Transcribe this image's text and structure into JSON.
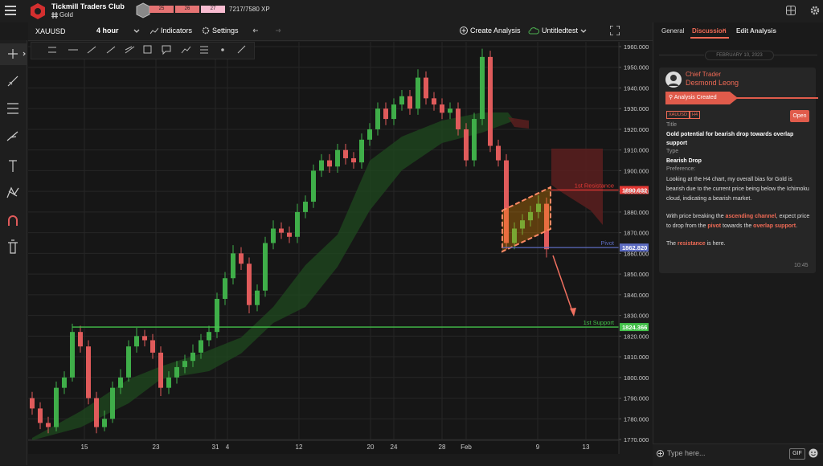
{
  "header": {
    "title": "Tickmill Traders Club",
    "channel": "Gold",
    "levels": [
      "25",
      "26",
      "27"
    ],
    "xp": "7217/7580 XP"
  },
  "toolbar": {
    "symbol": "XAUUSD",
    "timeframe": "4 hour",
    "indicators": "Indicators",
    "settings": "Settings",
    "create": "Create Analysis",
    "layout": "Untitledtest"
  },
  "chart": {
    "type": "candlestick",
    "ylim": [
      1770,
      1960
    ],
    "yticks": [
      {
        "value": 1770,
        "label": "1770.000"
      },
      {
        "value": 1780,
        "label": "1780.000"
      },
      {
        "value": 1790,
        "label": "1790.000"
      },
      {
        "value": 1800,
        "label": "1800.000"
      },
      {
        "value": 1810,
        "label": "1810.000"
      },
      {
        "value": 1820,
        "label": "1820.000"
      },
      {
        "value": 1830,
        "label": "1830.000"
      },
      {
        "value": 1840,
        "label": "1840.000"
      },
      {
        "value": 1850,
        "label": "1850.000"
      },
      {
        "value": 1860,
        "label": "1860.000"
      },
      {
        "value": 1870,
        "label": "1870.000"
      },
      {
        "value": 1880,
        "label": "1880.000"
      },
      {
        "value": 1890,
        "label": "1890.000"
      },
      {
        "value": 1900,
        "label": "1900.000"
      },
      {
        "value": 1910,
        "label": "1910.000"
      },
      {
        "value": 1920,
        "label": "1920.000"
      },
      {
        "value": 1930,
        "label": "1930.000"
      },
      {
        "value": 1940,
        "label": "1940.000"
      },
      {
        "value": 1950,
        "label": "1950.000"
      },
      {
        "value": 1960,
        "label": "1960.000"
      }
    ],
    "xticks": [
      "15",
      "23",
      "31",
      "4",
      "12",
      "20",
      "24",
      "28",
      "Feb",
      "9",
      "13"
    ],
    "up_color": "#3fae49",
    "down_color": "#e05b5b",
    "candles": [
      [
        1790,
        1793,
        1782,
        1785
      ],
      [
        1785,
        1788,
        1775,
        1778
      ],
      [
        1778,
        1781,
        1773,
        1776
      ],
      [
        1776,
        1798,
        1774,
        1795
      ],
      [
        1795,
        1803,
        1792,
        1800
      ],
      [
        1800,
        1826,
        1798,
        1822
      ],
      [
        1822,
        1825,
        1812,
        1815
      ],
      [
        1815,
        1818,
        1787,
        1790
      ],
      [
        1790,
        1793,
        1773,
        1776
      ],
      [
        1776,
        1784,
        1774,
        1780
      ],
      [
        1780,
        1798,
        1778,
        1795
      ],
      [
        1795,
        1804,
        1792,
        1800
      ],
      [
        1800,
        1818,
        1798,
        1815
      ],
      [
        1815,
        1824,
        1812,
        1820
      ],
      [
        1820,
        1823,
        1815,
        1818
      ],
      [
        1818,
        1821,
        1809,
        1812
      ],
      [
        1812,
        1815,
        1791,
        1795
      ],
      [
        1795,
        1803,
        1792,
        1800
      ],
      [
        1800,
        1808,
        1797,
        1805
      ],
      [
        1805,
        1811,
        1802,
        1808
      ],
      [
        1808,
        1816,
        1805,
        1812
      ],
      [
        1812,
        1821,
        1809,
        1818
      ],
      [
        1818,
        1825,
        1815,
        1822
      ],
      [
        1822,
        1841,
        1819,
        1838
      ],
      [
        1838,
        1851,
        1835,
        1848
      ],
      [
        1848,
        1864,
        1845,
        1860
      ],
      [
        1860,
        1863,
        1852,
        1855
      ],
      [
        1855,
        1858,
        1831,
        1835
      ],
      [
        1835,
        1845,
        1832,
        1842
      ],
      [
        1842,
        1868,
        1839,
        1865
      ],
      [
        1865,
        1876,
        1862,
        1872
      ],
      [
        1872,
        1875,
        1867,
        1870
      ],
      [
        1870,
        1873,
        1865,
        1868
      ],
      [
        1868,
        1884,
        1865,
        1880
      ],
      [
        1880,
        1888,
        1877,
        1885
      ],
      [
        1885,
        1903,
        1882,
        1900
      ],
      [
        1900,
        1908,
        1897,
        1905
      ],
      [
        1905,
        1908,
        1899,
        1902
      ],
      [
        1902,
        1913,
        1899,
        1910
      ],
      [
        1910,
        1913,
        1903,
        1906
      ],
      [
        1906,
        1909,
        1901,
        1904
      ],
      [
        1904,
        1918,
        1901,
        1915
      ],
      [
        1915,
        1923,
        1912,
        1920
      ],
      [
        1920,
        1933,
        1917,
        1930
      ],
      [
        1930,
        1933,
        1922,
        1925
      ],
      [
        1925,
        1935,
        1922,
        1932
      ],
      [
        1932,
        1939,
        1929,
        1936
      ],
      [
        1936,
        1939,
        1927,
        1930
      ],
      [
        1930,
        1949,
        1927,
        1945
      ],
      [
        1945,
        1948,
        1932,
        1935
      ],
      [
        1935,
        1938,
        1929,
        1932
      ],
      [
        1932,
        1935,
        1925,
        1928
      ],
      [
        1928,
        1933,
        1925,
        1930
      ],
      [
        1930,
        1933,
        1917,
        1920
      ],
      [
        1920,
        1923,
        1902,
        1905
      ],
      [
        1905,
        1928,
        1902,
        1925
      ],
      [
        1925,
        1959,
        1922,
        1955
      ],
      [
        1955,
        1958,
        1909,
        1912
      ],
      [
        1912,
        1915,
        1902,
        1905
      ],
      [
        1905,
        1908,
        1862,
        1865
      ],
      [
        1865,
        1875,
        1862,
        1872
      ],
      [
        1872,
        1879,
        1869,
        1876
      ],
      [
        1876,
        1883,
        1873,
        1880
      ],
      [
        1880,
        1888,
        1877,
        1884
      ],
      [
        1884,
        1887,
        1858,
        1862
      ]
    ],
    "levels": [
      {
        "name": "1st Resistance",
        "price": {
          "value": 1890.632,
          "label": "1890.632"
        },
        "color": "#e53935"
      },
      {
        "name": "Pivot",
        "price": {
          "value": 1862.82,
          "label": "1862.820"
        },
        "color": "#5c6bc0"
      },
      {
        "name": "1st Support",
        "price": {
          "value": 1824.366,
          "label": "1824.366"
        },
        "color": "#43c04a"
      }
    ]
  },
  "panel": {
    "tabs": [
      "General",
      "Discussion",
      "Edit Analysis"
    ],
    "date": "FEBRUARY 10, 2023",
    "role": "Chief Trader",
    "author": "Desmond Leong",
    "event": "Analysis Created",
    "tags": [
      "XAUUSD",
      "H4"
    ],
    "open": "Open",
    "fields": {
      "title_label": "Title",
      "title": "Gold potential for bearish drop towards overlap support",
      "type_label": "Type",
      "type": "Bearish Drop",
      "preference_label": "Preference:"
    },
    "paragraphs": [
      [
        "Looking at the H4 chart, my overall bias for Gold is bearish due to the current price being below the Ichimoku cloud, indicating a bearish market."
      ],
      [
        "With price breaking the ",
        "ascending channel",
        ", expect price to drop from the ",
        "pivot",
        " towards the ",
        "overlap support",
        "."
      ],
      [
        "The ",
        "resistance",
        " is here."
      ]
    ],
    "time": "10:45",
    "input": "Type here...",
    "gif": "GIF"
  }
}
